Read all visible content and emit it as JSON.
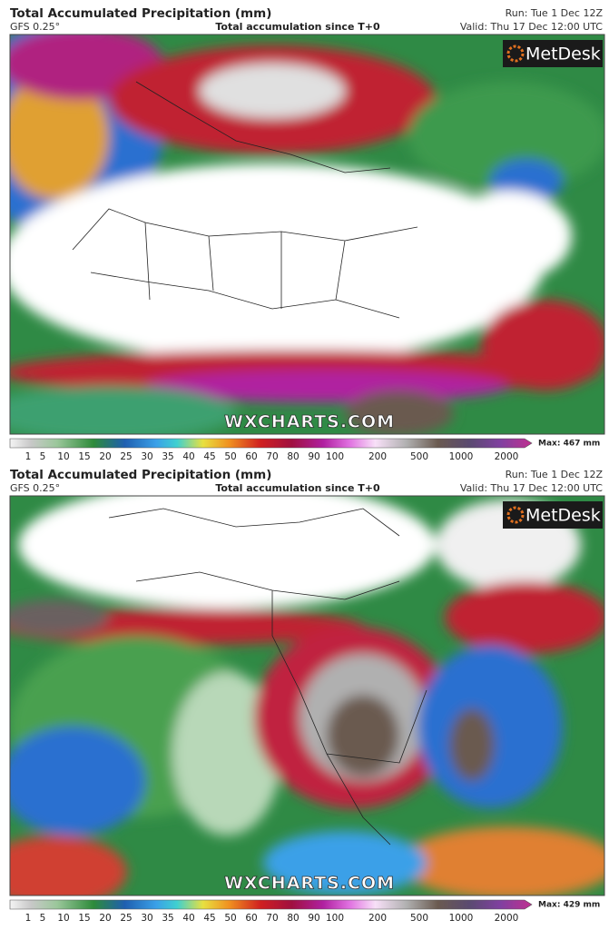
{
  "panels": [
    {
      "title": "Total Accumulated Precipitation (mm)",
      "model": "GFS 0.25°",
      "subtitle": "Total accumulation since T+0",
      "run": "Run: Tue 1 Dec 12Z",
      "valid": "Valid: Thu 17 Dec 12:00 UTC",
      "brand": "MetDesk",
      "watermark": "WXCHARTS.COM",
      "max": "Max: 467 mm"
    },
    {
      "title": "Total Accumulated Precipitation (mm)",
      "model": "GFS 0.25°",
      "subtitle": "Total accumulation since T+0",
      "run": "Run: Tue 1 Dec 12Z",
      "valid": "Valid: Thu 17 Dec 12:00 UTC",
      "brand": "MetDesk",
      "watermark": "WXCHARTS.COM",
      "max": "Max: 429 mm"
    }
  ],
  "legend_ticks": [
    1,
    5,
    10,
    15,
    20,
    25,
    30,
    35,
    40,
    45,
    50,
    60,
    70,
    80,
    90,
    100,
    200,
    500,
    1000,
    2000
  ]
}
